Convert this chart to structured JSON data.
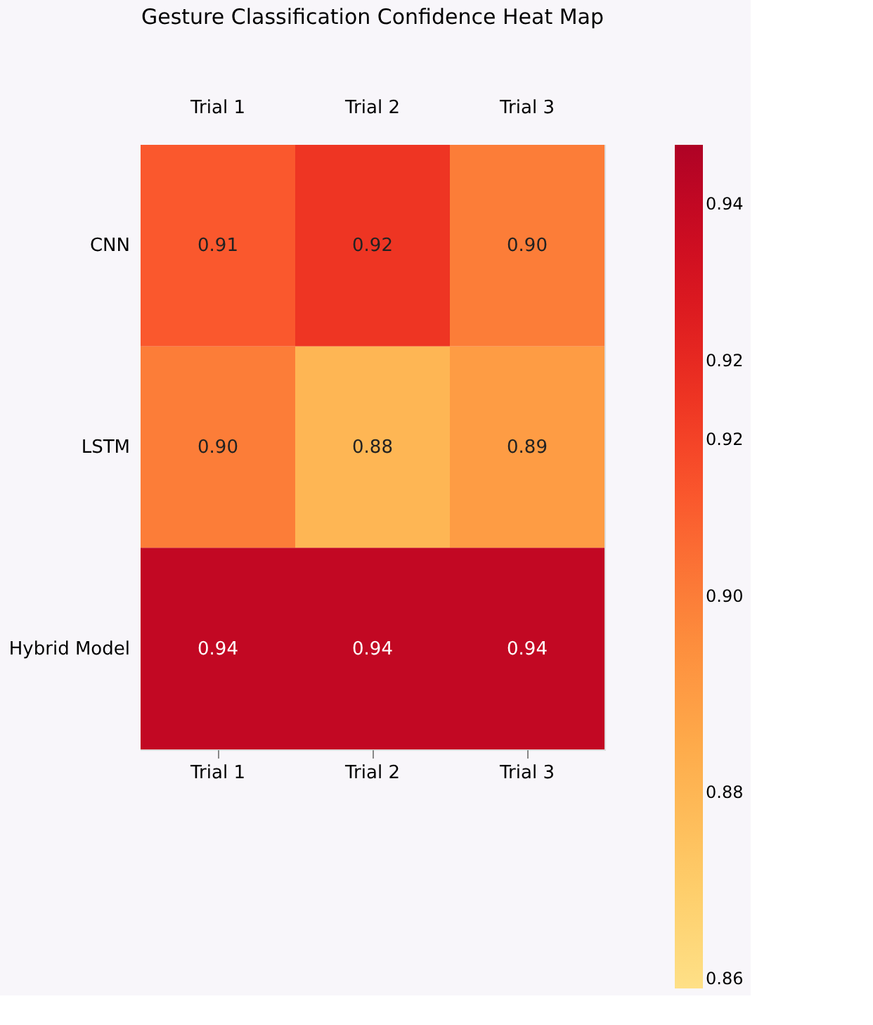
{
  "chart_data": {
    "type": "heatmap",
    "title": "Gesture Classification Confidence Heat Map",
    "categories": [
      "Trial 1",
      "Trial 2",
      "Trial 3"
    ],
    "y_categories": [
      "CNN",
      "LSTM",
      "Hybrid Model"
    ],
    "cells": [
      [
        0.91,
        0.92,
        0.9
      ],
      [
        0.9,
        0.88,
        0.89
      ],
      [
        0.94,
        0.94,
        0.94
      ]
    ],
    "cell_labels": [
      [
        "0.91",
        "0.92",
        "0.90"
      ],
      [
        "0.90",
        "0.88",
        "0.89"
      ],
      [
        "0.94",
        "0.94",
        "0.94"
      ]
    ],
    "clim": [
      0.86,
      0.946
    ],
    "cticks": [
      {
        "value": 0.86,
        "label": "0.86"
      },
      {
        "value": 0.88,
        "label": "0.88"
      },
      {
        "value": 0.9,
        "label": "0.90"
      },
      {
        "value": 0.916,
        "label": "0.92"
      },
      {
        "value": 0.924,
        "label": "0.92"
      },
      {
        "value": 0.94,
        "label": "0.94"
      }
    ]
  }
}
